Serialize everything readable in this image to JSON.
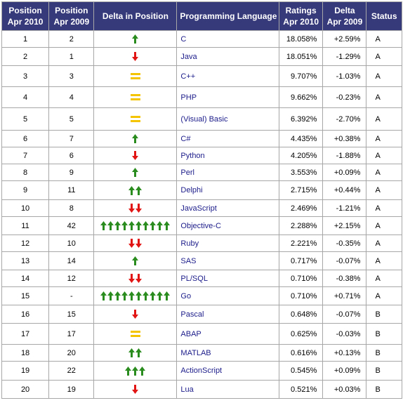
{
  "headers": {
    "pos2010": [
      "Position",
      "Apr 2010"
    ],
    "pos2009": [
      "Position",
      "Apr 2009"
    ],
    "delta_pos": "Delta in Position",
    "language": "Programming Language",
    "ratings": [
      "Ratings",
      "Apr 2010"
    ],
    "delta09": [
      "Delta",
      "Apr 2009"
    ],
    "status": "Status"
  },
  "colors": {
    "up": "#2a8c1e",
    "down": "#e21515",
    "same": "#f4c400",
    "header_bg": "#36397a",
    "link": "#1b1b8a"
  },
  "rows": [
    {
      "pos2010": "1",
      "pos2009": "2",
      "trend": "up",
      "count": 1,
      "language": "C",
      "rating": "18.058%",
      "delta": "+2.59%",
      "status": "A"
    },
    {
      "pos2010": "2",
      "pos2009": "1",
      "trend": "down",
      "count": 1,
      "language": "Java",
      "rating": "18.051%",
      "delta": "-1.29%",
      "status": "A"
    },
    {
      "pos2010": "3",
      "pos2009": "3",
      "trend": "same",
      "count": 1,
      "language": "C++",
      "rating": "9.707%",
      "delta": "-1.03%",
      "status": "A"
    },
    {
      "pos2010": "4",
      "pos2009": "4",
      "trend": "same",
      "count": 1,
      "language": "PHP",
      "rating": "9.662%",
      "delta": "-0.23%",
      "status": "A"
    },
    {
      "pos2010": "5",
      "pos2009": "5",
      "trend": "same",
      "count": 1,
      "language": "(Visual) Basic",
      "rating": "6.392%",
      "delta": "-2.70%",
      "status": "A"
    },
    {
      "pos2010": "6",
      "pos2009": "7",
      "trend": "up",
      "count": 1,
      "language": "C#",
      "rating": "4.435%",
      "delta": "+0.38%",
      "status": "A"
    },
    {
      "pos2010": "7",
      "pos2009": "6",
      "trend": "down",
      "count": 1,
      "language": "Python",
      "rating": "4.205%",
      "delta": "-1.88%",
      "status": "A"
    },
    {
      "pos2010": "8",
      "pos2009": "9",
      "trend": "up",
      "count": 1,
      "language": "Perl",
      "rating": "3.553%",
      "delta": "+0.09%",
      "status": "A"
    },
    {
      "pos2010": "9",
      "pos2009": "11",
      "trend": "up",
      "count": 2,
      "language": "Delphi",
      "rating": "2.715%",
      "delta": "+0.44%",
      "status": "A"
    },
    {
      "pos2010": "10",
      "pos2009": "8",
      "trend": "down",
      "count": 2,
      "language": "JavaScript",
      "rating": "2.469%",
      "delta": "-1.21%",
      "status": "A"
    },
    {
      "pos2010": "11",
      "pos2009": "42",
      "trend": "up",
      "count": 10,
      "language": "Objective-C",
      "rating": "2.288%",
      "delta": "+2.15%",
      "status": "A"
    },
    {
      "pos2010": "12",
      "pos2009": "10",
      "trend": "down",
      "count": 2,
      "language": "Ruby",
      "rating": "2.221%",
      "delta": "-0.35%",
      "status": "A"
    },
    {
      "pos2010": "13",
      "pos2009": "14",
      "trend": "up",
      "count": 1,
      "language": "SAS",
      "rating": "0.717%",
      "delta": "-0.07%",
      "status": "A"
    },
    {
      "pos2010": "14",
      "pos2009": "12",
      "trend": "down",
      "count": 2,
      "language": "PL/SQL",
      "rating": "0.710%",
      "delta": "-0.38%",
      "status": "A"
    },
    {
      "pos2010": "15",
      "pos2009": "-",
      "trend": "up",
      "count": 10,
      "language": "Go",
      "rating": "0.710%",
      "delta": "+0.71%",
      "status": "A"
    },
    {
      "pos2010": "16",
      "pos2009": "15",
      "trend": "down",
      "count": 1,
      "language": "Pascal",
      "rating": "0.648%",
      "delta": "-0.07%",
      "status": "B"
    },
    {
      "pos2010": "17",
      "pos2009": "17",
      "trend": "same",
      "count": 1,
      "language": "ABAP",
      "rating": "0.625%",
      "delta": "-0.03%",
      "status": "B"
    },
    {
      "pos2010": "18",
      "pos2009": "20",
      "trend": "up",
      "count": 2,
      "language": "MATLAB",
      "rating": "0.616%",
      "delta": "+0.13%",
      "status": "B"
    },
    {
      "pos2010": "19",
      "pos2009": "22",
      "trend": "up",
      "count": 3,
      "language": "ActionScript",
      "rating": "0.545%",
      "delta": "+0.09%",
      "status": "B"
    },
    {
      "pos2010": "20",
      "pos2009": "19",
      "trend": "down",
      "count": 1,
      "language": "Lua",
      "rating": "0.521%",
      "delta": "+0.03%",
      "status": "B"
    }
  ]
}
